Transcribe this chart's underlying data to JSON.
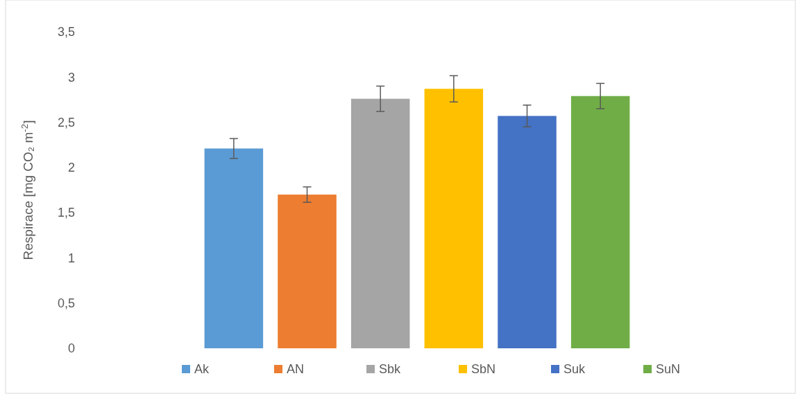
{
  "chart_data": {
    "type": "bar",
    "ylabel": "Respirace [mg CO₂ m$^{-2}$]",
    "categories": [
      null
    ],
    "series": [
      {
        "name": "Ak",
        "color": "#5b9bd5",
        "values": [
          2.21
        ],
        "errors": [
          0.11
        ]
      },
      {
        "name": "AN",
        "color": "#ed7d31",
        "values": [
          1.7
        ],
        "errors": [
          0.085
        ]
      },
      {
        "name": "Sbk",
        "color": "#a5a5a5",
        "values": [
          2.76
        ],
        "errors": [
          0.14
        ]
      },
      {
        "name": "SbN",
        "color": "#ffc000",
        "values": [
          2.87
        ],
        "errors": [
          0.145
        ]
      },
      {
        "name": "Suk",
        "color": "#4472c4",
        "values": [
          2.57
        ],
        "errors": [
          0.12
        ]
      },
      {
        "name": "SuN",
        "color": "#70ad47",
        "values": [
          2.79
        ],
        "errors": [
          0.14
        ]
      }
    ],
    "ylim": [
      0,
      3.5
    ],
    "yticks": [
      {
        "value": 0,
        "label": "0"
      },
      {
        "value": 0.5,
        "label": "0,5"
      },
      {
        "value": 1,
        "label": "1"
      },
      {
        "value": 1.5,
        "label": "1,5"
      },
      {
        "value": 2,
        "label": "2"
      },
      {
        "value": 2.5,
        "label": "2,5"
      },
      {
        "value": 3,
        "label": "3"
      },
      {
        "value": 3.5,
        "label": "3,5"
      }
    ],
    "legend": "bottom"
  }
}
